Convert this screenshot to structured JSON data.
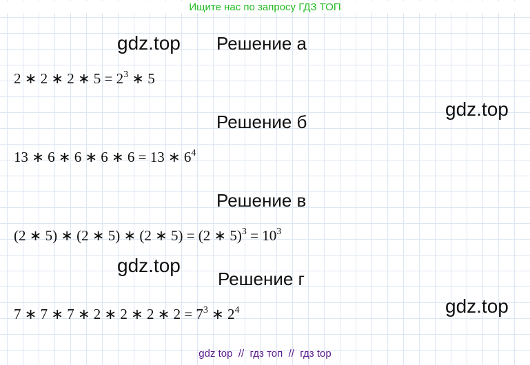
{
  "header": {
    "text": "Ищите нас по запросу ГДЗ ТОП"
  },
  "watermarks": [
    "gdz.top",
    "gdz.top",
    "gdz.top",
    "gdz.top"
  ],
  "sections": [
    {
      "title": "Решение а",
      "formula": [
        {
          "text": "2 ∗ 2 ∗ 2 ∗ 5 = 2"
        },
        {
          "sup": "3"
        },
        {
          "text": " ∗ 5"
        }
      ]
    },
    {
      "title": "Решение б",
      "formula": [
        {
          "text": "13 ∗ 6 ∗ 6 ∗ 6 ∗ 6 = 13 ∗ 6"
        },
        {
          "sup": "4"
        }
      ]
    },
    {
      "title": "Решение в",
      "formula": [
        {
          "text": "(2 ∗ 5) ∗ (2 ∗ 5) ∗ (2 ∗ 5) = (2 ∗ 5)"
        },
        {
          "sup": "3"
        },
        {
          "text": " = 10"
        },
        {
          "sup": "3"
        }
      ]
    },
    {
      "title": "Решение г",
      "formula": [
        {
          "text": "7 ∗ 7 ∗ 7 ∗ 2 ∗ 2 ∗ 2 ∗ 2 = 7"
        },
        {
          "sup": "3"
        },
        {
          "text": " ∗ 2"
        },
        {
          "sup": "4"
        }
      ]
    }
  ],
  "footer": {
    "text": "gdz top  //  гдз топ  //  гдз top"
  }
}
